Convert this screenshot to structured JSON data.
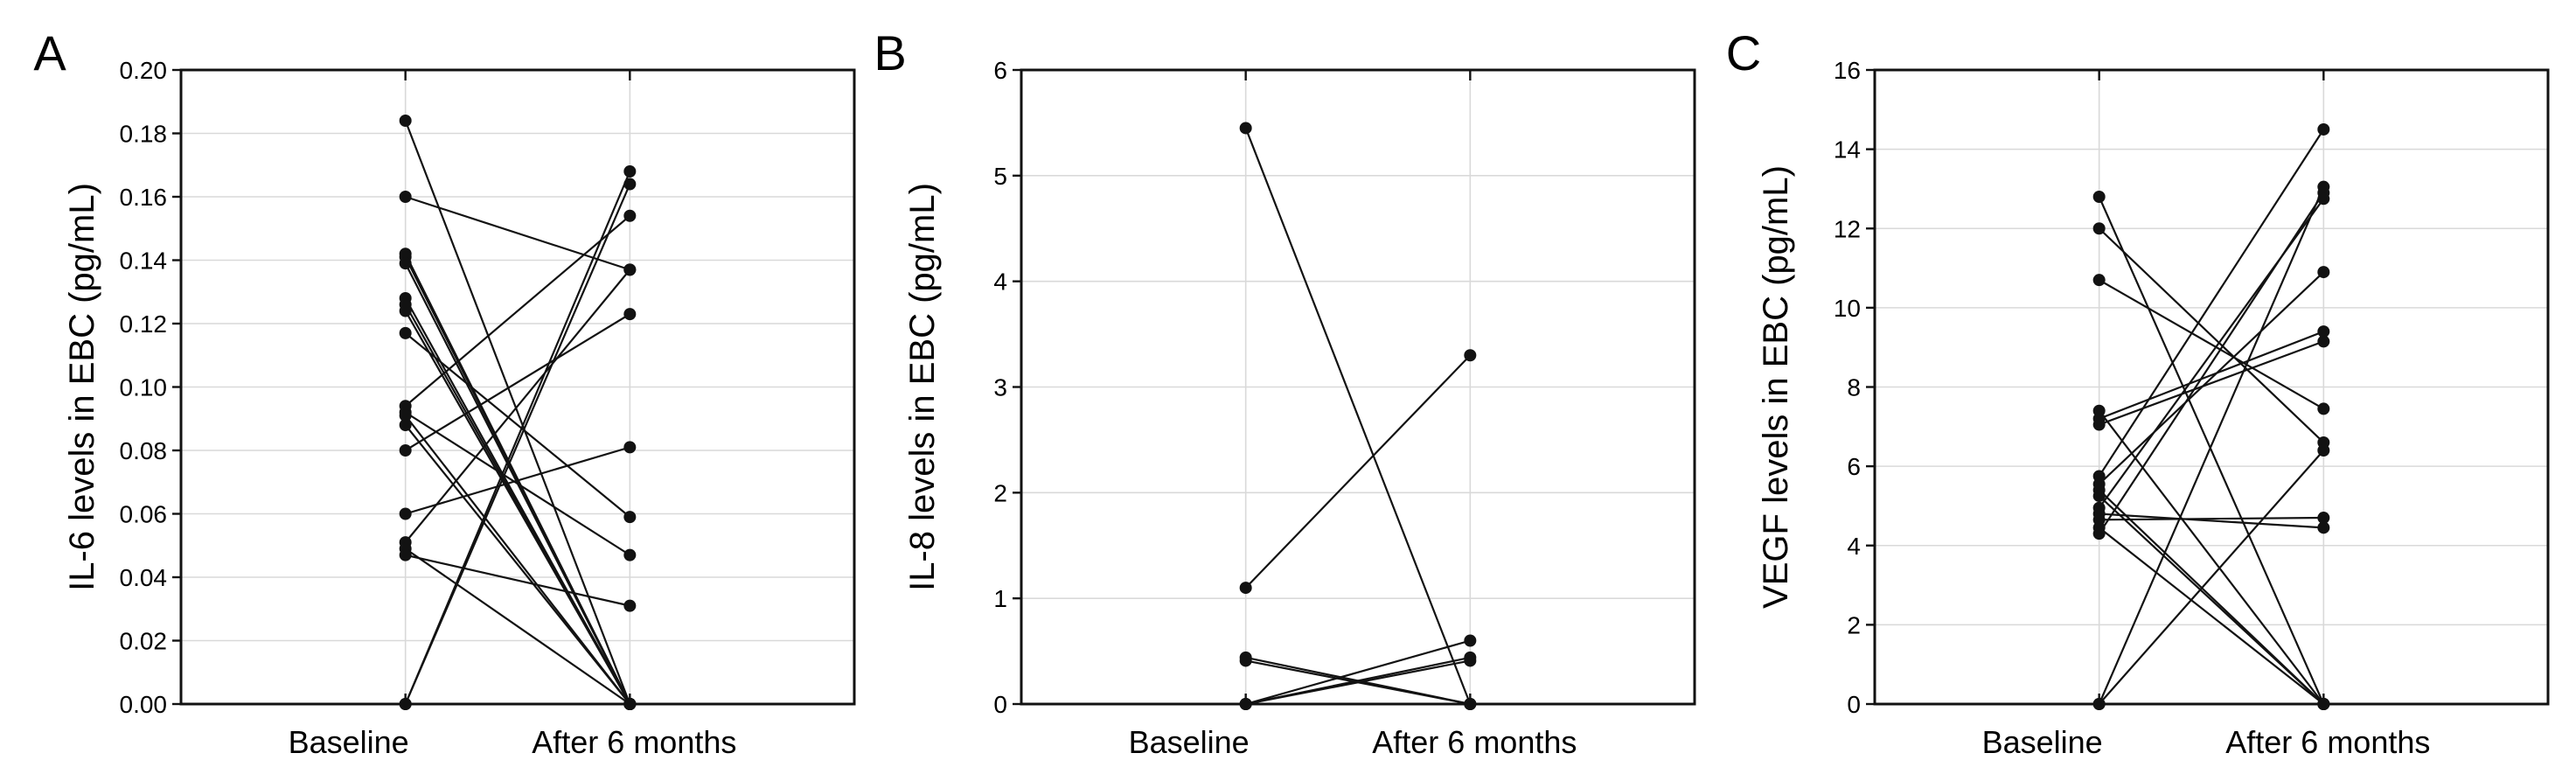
{
  "figure": {
    "description": "Three-panel paired individual-subject plot of exhaled breath condensate (EBC) biomarker levels at baseline and after 6 months",
    "background_color": "#ffffff",
    "ink_color": "#121212",
    "gridline_color": "#d9d9d9",
    "marker_color": "#121212",
    "panel_letters": [
      "A",
      "B",
      "C"
    ]
  },
  "chart_data": [
    {
      "type": "line",
      "subtype": "paired-before-after-spaghetti",
      "panel_label": "A",
      "title": "",
      "xlabel": "",
      "ylabel": "IL-6 levels in EBC (pg/mL)",
      "categories": [
        "Baseline",
        "After 6 months"
      ],
      "ylim": [
        0,
        0.2
      ],
      "ytick_step": 0.02,
      "ytick_decimals": 2,
      "grid": true,
      "legend": "none",
      "marker": "filled-circle",
      "pair_format": [
        "baseline",
        "after_6_months"
      ],
      "pairs": [
        [
          0.184,
          0.0
        ],
        [
          0.16,
          0.137
        ],
        [
          0.142,
          0.0
        ],
        [
          0.141,
          0.0
        ],
        [
          0.139,
          0.0
        ],
        [
          0.128,
          0.0
        ],
        [
          0.126,
          0.0
        ],
        [
          0.124,
          0.0
        ],
        [
          0.117,
          0.059
        ],
        [
          0.094,
          0.154
        ],
        [
          0.092,
          0.047
        ],
        [
          0.091,
          0.0
        ],
        [
          0.088,
          0.0
        ],
        [
          0.08,
          0.123
        ],
        [
          0.06,
          0.081
        ],
        [
          0.051,
          0.137
        ],
        [
          0.049,
          0.0
        ],
        [
          0.047,
          0.031
        ],
        [
          0.0,
          0.168
        ],
        [
          0.0,
          0.164
        ]
      ]
    },
    {
      "type": "line",
      "subtype": "paired-before-after-spaghetti",
      "panel_label": "B",
      "title": "",
      "xlabel": "",
      "ylabel": "IL-8 levels in EBC (pg/mL)",
      "categories": [
        "Baseline",
        "After 6 months"
      ],
      "ylim": [
        0,
        6
      ],
      "ytick_step": 1,
      "ytick_decimals": 0,
      "grid": true,
      "legend": "none",
      "marker": "filled-circle",
      "pair_format": [
        "baseline",
        "after_6_months"
      ],
      "pairs": [
        [
          5.45,
          0.0
        ],
        [
          1.1,
          3.3
        ],
        [
          0.44,
          0.0
        ],
        [
          0.41,
          0.0
        ],
        [
          0.0,
          0.6
        ],
        [
          0.0,
          0.44
        ],
        [
          0.0,
          0.41
        ]
      ]
    },
    {
      "type": "line",
      "subtype": "paired-before-after-spaghetti",
      "panel_label": "C",
      "title": "",
      "xlabel": "",
      "ylabel": "VEGF levels in EBC (pg/mL)",
      "categories": [
        "Baseline",
        "After 6 months"
      ],
      "ylim": [
        0,
        16
      ],
      "ytick_step": 2,
      "ytick_decimals": 0,
      "grid": true,
      "legend": "none",
      "marker": "filled-circle",
      "pair_format": [
        "baseline",
        "after_6_months"
      ],
      "pairs": [
        [
          12.8,
          0.0
        ],
        [
          12.0,
          6.6
        ],
        [
          10.7,
          7.45
        ],
        [
          7.4,
          0.0
        ],
        [
          7.2,
          9.4
        ],
        [
          7.05,
          9.15
        ],
        [
          5.75,
          14.5
        ],
        [
          5.55,
          10.9
        ],
        [
          5.4,
          0.0
        ],
        [
          5.25,
          0.0
        ],
        [
          4.95,
          12.75
        ],
        [
          4.8,
          4.45
        ],
        [
          4.65,
          4.7
        ],
        [
          4.45,
          0.0
        ],
        [
          4.3,
          12.9
        ],
        [
          0.0,
          13.05
        ],
        [
          0.0,
          6.4
        ]
      ]
    }
  ]
}
